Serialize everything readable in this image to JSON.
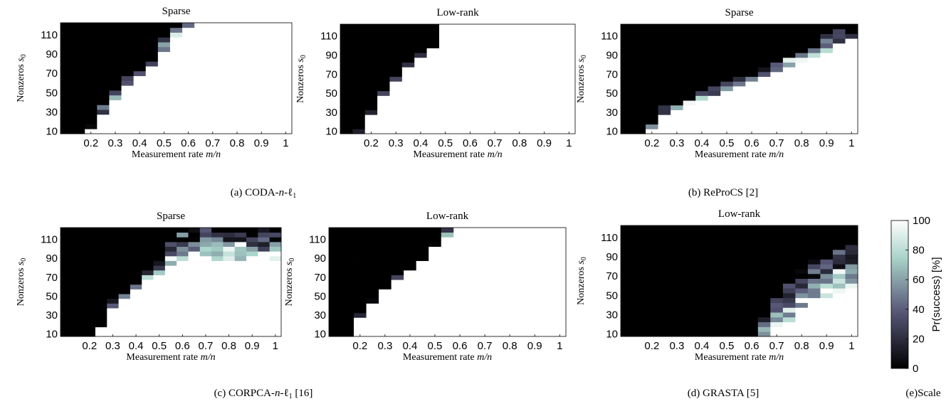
{
  "chart_data": [
    {
      "id": "coda-sparse",
      "type": "heatmap",
      "title": "Sparse",
      "xlabel": "Measurement rate m/n",
      "ylabel": "Nonzeros s0",
      "xticks": [
        "0.2",
        "0.3",
        "0.4",
        "0.5",
        "0.6",
        "0.7",
        "0.8",
        "0.9",
        "1"
      ],
      "yticks": [
        "10",
        "30",
        "50",
        "70",
        "90",
        "110"
      ],
      "x": [
        0.1,
        0.15,
        0.2,
        0.25,
        0.3,
        0.35,
        0.4,
        0.45,
        0.5,
        0.55,
        0.6,
        0.65,
        0.7,
        0.75,
        0.8,
        0.85,
        0.9,
        0.95,
        1.0
      ],
      "y": [
        10,
        15,
        20,
        25,
        30,
        35,
        40,
        45,
        50,
        55,
        60,
        65,
        70,
        75,
        80,
        85,
        90,
        95,
        100,
        105,
        110,
        115,
        120
      ],
      "threshold": [
        0,
        0,
        10,
        25,
        40,
        55,
        65,
        75,
        90,
        105,
        115,
        120,
        120,
        120,
        120,
        120,
        120,
        120,
        120
      ],
      "transition_width": [
        1,
        1,
        1,
        2,
        2,
        2,
        2,
        2,
        3,
        3,
        3,
        2,
        2,
        2,
        2,
        2,
        2,
        2,
        2
      ],
      "ylim": [
        7.5,
        122.5
      ],
      "xlim": [
        0.075,
        1.025
      ]
    },
    {
      "id": "coda-lowrank",
      "type": "heatmap",
      "title": "Low-rank",
      "xlabel": "Measurement rate m/n",
      "ylabel": "Nonzeros s0",
      "xticks": [
        "0.2",
        "0.3",
        "0.4",
        "0.5",
        "0.6",
        "0.7",
        "0.8",
        "0.9",
        "1"
      ],
      "yticks": [
        "10",
        "30",
        "50",
        "70",
        "90",
        "110"
      ],
      "x": [
        0.1,
        0.15,
        0.2,
        0.25,
        0.3,
        0.35,
        0.4,
        0.45,
        0.5,
        0.55,
        0.6,
        0.65,
        0.7,
        0.75,
        0.8,
        0.85,
        0.9,
        0.95,
        1.0
      ],
      "y": [
        10,
        15,
        20,
        25,
        30,
        35,
        40,
        45,
        50,
        55,
        60,
        65,
        70,
        75,
        80,
        85,
        90,
        95,
        100,
        105,
        110,
        115,
        120
      ],
      "threshold": [
        0,
        5,
        25,
        45,
        60,
        75,
        85,
        95,
        120,
        120,
        120,
        120,
        120,
        120,
        120,
        120,
        120,
        120,
        120
      ],
      "transition_width": [
        1,
        1,
        1,
        1,
        1,
        1,
        1,
        1,
        1,
        1,
        1,
        1,
        1,
        1,
        1,
        1,
        1,
        1,
        1
      ],
      "ylim": [
        7.5,
        122.5
      ],
      "xlim": [
        0.075,
        1.025
      ]
    },
    {
      "id": "reprocs-sparse",
      "type": "heatmap",
      "title": "Sparse",
      "xlabel": "Measurement rate m/n",
      "ylabel": "Nonzeros s0",
      "xticks": [
        "0.2",
        "0.3",
        "0.4",
        "0.5",
        "0.6",
        "0.7",
        "0.8",
        "0.9",
        "1"
      ],
      "yticks": [
        "10",
        "30",
        "50",
        "70",
        "90",
        "110"
      ],
      "x": [
        0.1,
        0.15,
        0.2,
        0.25,
        0.3,
        0.35,
        0.4,
        0.45,
        0.5,
        0.55,
        0.6,
        0.65,
        0.7,
        0.75,
        0.8,
        0.85,
        0.9,
        0.95,
        1.0
      ],
      "y": [
        10,
        15,
        20,
        25,
        30,
        35,
        40,
        45,
        50,
        55,
        60,
        65,
        70,
        75,
        80,
        85,
        90,
        95,
        100,
        105,
        110,
        115,
        120
      ],
      "threshold": [
        0,
        0,
        10,
        25,
        30,
        35,
        40,
        45,
        50,
        55,
        60,
        65,
        70,
        75,
        80,
        85,
        90,
        95,
        100
      ],
      "transition_width": [
        1,
        1,
        1,
        2,
        2,
        2,
        2,
        2,
        2,
        2,
        2,
        2,
        3,
        3,
        3,
        3,
        4,
        4,
        4
      ],
      "ylim": [
        7.5,
        122.5
      ],
      "xlim": [
        0.075,
        1.025
      ]
    },
    {
      "id": "corpca-sparse",
      "type": "heatmap",
      "title": "Sparse",
      "xlabel": "Measurement rate m/n",
      "ylabel": "Nonzeros s0",
      "xticks": [
        "0.2",
        "0.3",
        "0.4",
        "0.5",
        "0.6",
        "0.7",
        "0.8",
        "0.9",
        "1"
      ],
      "yticks": [
        "10",
        "30",
        "50",
        "70",
        "90",
        "110"
      ],
      "x": [
        0.1,
        0.15,
        0.2,
        0.25,
        0.3,
        0.35,
        0.4,
        0.45,
        0.5,
        0.55,
        0.6,
        0.65,
        0.7,
        0.75,
        0.8,
        0.85,
        0.9,
        0.95,
        1.0
      ],
      "y": [
        10,
        15,
        20,
        25,
        30,
        35,
        40,
        45,
        50,
        55,
        60,
        65,
        70,
        75,
        80,
        85,
        90,
        95,
        100,
        105,
        110,
        115,
        120
      ],
      "threshold": [
        0,
        0,
        0,
        15,
        35,
        45,
        55,
        65,
        70,
        80,
        85,
        85,
        85,
        85,
        85,
        85,
        85,
        85,
        85
      ],
      "transition_width": [
        1,
        1,
        1,
        1,
        2,
        2,
        2,
        3,
        3,
        6,
        6,
        7,
        7,
        7,
        7,
        7,
        7,
        7,
        7
      ],
      "ylim": [
        7.5,
        122.5
      ],
      "xlim": [
        0.075,
        1.025
      ]
    },
    {
      "id": "corpca-lowrank",
      "type": "heatmap",
      "title": "Low-rank",
      "xlabel": "Measurement rate m/n",
      "ylabel": "Nonzeros s0",
      "xticks": [
        "0.2",
        "0.3",
        "0.4",
        "0.5",
        "0.6",
        "0.7",
        "0.8",
        "0.9",
        "1"
      ],
      "yticks": [
        "10",
        "30",
        "50",
        "70",
        "90",
        "110"
      ],
      "x": [
        0.1,
        0.15,
        0.2,
        0.25,
        0.3,
        0.35,
        0.4,
        0.45,
        0.5,
        0.55,
        0.6,
        0.65,
        0.7,
        0.75,
        0.8,
        0.85,
        0.9,
        0.95,
        1.0
      ],
      "y": [
        10,
        15,
        20,
        25,
        30,
        35,
        40,
        45,
        50,
        55,
        60,
        65,
        70,
        75,
        80,
        85,
        90,
        95,
        100,
        105,
        110,
        115,
        120
      ],
      "threshold": [
        0,
        5,
        25,
        40,
        55,
        65,
        75,
        85,
        100,
        110,
        120,
        120,
        120,
        120,
        120,
        120,
        120,
        120,
        120
      ],
      "transition_width": [
        1,
        1,
        1,
        1,
        1,
        1,
        1,
        1,
        1,
        2,
        2,
        2,
        1,
        1,
        1,
        1,
        1,
        1,
        1
      ],
      "ylim": [
        7.5,
        122.5
      ],
      "xlim": [
        0.075,
        1.025
      ]
    },
    {
      "id": "grasta-lowrank",
      "type": "heatmap",
      "title": "Low-rank",
      "xlabel": "Measurement rate m/n",
      "ylabel": "Nonzeros s0",
      "xticks": [
        "0.2",
        "0.3",
        "0.4",
        "0.5",
        "0.6",
        "0.7",
        "0.8",
        "0.9",
        "1"
      ],
      "yticks": [
        "10",
        "30",
        "50",
        "70",
        "90",
        "110"
      ],
      "x": [
        0.1,
        0.15,
        0.2,
        0.25,
        0.3,
        0.35,
        0.4,
        0.45,
        0.5,
        0.55,
        0.6,
        0.65,
        0.7,
        0.75,
        0.8,
        0.85,
        0.9,
        0.95,
        1.0
      ],
      "y": [
        10,
        15,
        20,
        25,
        30,
        35,
        40,
        45,
        50,
        55,
        60,
        65,
        70,
        75,
        80,
        85,
        90,
        95,
        100,
        105,
        110,
        115,
        120
      ],
      "threshold": [
        -30,
        -30,
        -30,
        -30,
        -30,
        -30,
        -30,
        -30,
        -30,
        -30,
        -15,
        0,
        10,
        20,
        30,
        40,
        45,
        50,
        55
      ],
      "transition_width": [
        1,
        1,
        1,
        1,
        1,
        1,
        1,
        1,
        1,
        1,
        5,
        6,
        7,
        8,
        9,
        9,
        9,
        9,
        9
      ],
      "ylim": [
        7.5,
        122.5
      ],
      "xlim": [
        0.075,
        1.025
      ]
    }
  ],
  "colorbar": {
    "label": "Pr(success) [%]",
    "ticks": [
      "0",
      "20",
      "40",
      "60",
      "80",
      "100"
    ],
    "range": [
      0,
      100
    ],
    "colormap": "bone"
  },
  "captions": {
    "a_prefix": "(a) CODA-",
    "a_italic": "n",
    "a_mid": "-ℓ",
    "a_sub": "1",
    "b": "(b) ReProCS [2]",
    "c_prefix": "(c) CORPCA-",
    "c_italic": "n",
    "c_mid": "-ℓ",
    "c_sub": "1",
    "c_suffix": " [16]",
    "d": "(d) GRASTA [5]",
    "e": "(e)Scale"
  },
  "axis_text": {
    "xlabel_main": "Measurement rate ",
    "xlabel_math": "m/n",
    "ylabel_main": "Nonzeros ",
    "ylabel_math": "s",
    "ylabel_sub": "0"
  }
}
